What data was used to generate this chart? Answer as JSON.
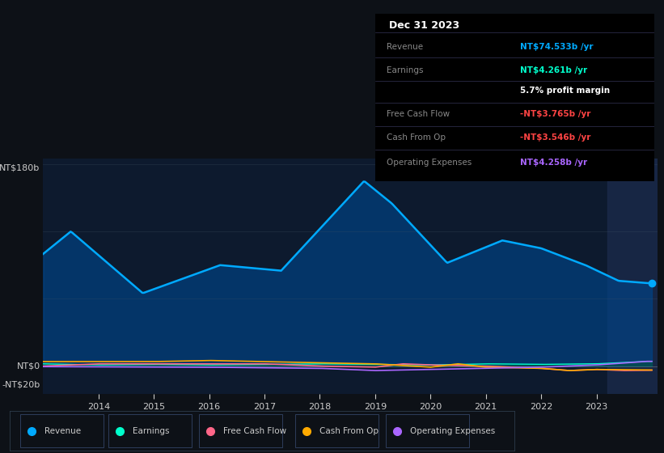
{
  "background_color": "#0d1117",
  "chart_bg": "#0d1a2e",
  "ylabel_top": "NT$180b",
  "ylabel_zero": "NT$0",
  "ylabel_neg": "-NT$20b",
  "legend_items": [
    {
      "label": "Revenue",
      "color": "#00aaff"
    },
    {
      "label": "Earnings",
      "color": "#00ffcc"
    },
    {
      "label": "Free Cash Flow",
      "color": "#ff6688"
    },
    {
      "label": "Cash From Op",
      "color": "#ffaa00"
    },
    {
      "label": "Operating Expenses",
      "color": "#aa66ff"
    }
  ],
  "info_box_title": "Dec 31 2023",
  "info_rows": [
    {
      "label": "Revenue",
      "value": "NT$74.533b /yr",
      "label_color": "#888888",
      "value_color": "#00aaff"
    },
    {
      "label": "Earnings",
      "value": "NT$4.261b /yr",
      "label_color": "#888888",
      "value_color": "#00ffcc"
    },
    {
      "label": "",
      "value": "5.7% profit margin",
      "label_color": "#888888",
      "value_color": "#ffffff"
    },
    {
      "label": "Free Cash Flow",
      "value": "-NT$3.765b /yr",
      "label_color": "#888888",
      "value_color": "#ff4444"
    },
    {
      "label": "Cash From Op",
      "value": "-NT$3.546b /yr",
      "label_color": "#888888",
      "value_color": "#ff4444"
    },
    {
      "label": "Operating Expenses",
      "value": "NT$4.258b /yr",
      "label_color": "#888888",
      "value_color": "#aa66ff"
    }
  ],
  "xticks": [
    2014,
    2015,
    2016,
    2017,
    2018,
    2019,
    2020,
    2021,
    2022,
    2023
  ],
  "ylim": [
    -25,
    185
  ],
  "xlim": [
    2013,
    2024.1
  ],
  "shaded_start": 2023.2,
  "shaded_end": 2024.1
}
